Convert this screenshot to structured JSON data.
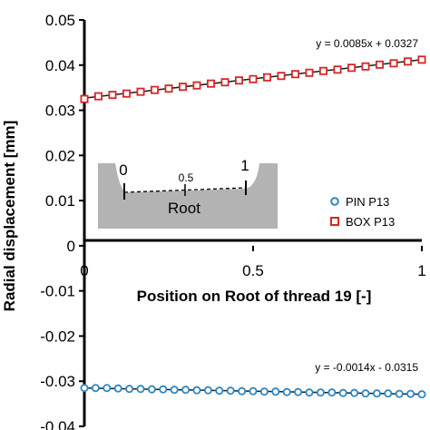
{
  "chart_data": {
    "type": "scatter",
    "xlabel": "Position on Root of thread 19 [-]",
    "ylabel": "Radial displacement [mm]",
    "xlim": [
      0,
      1
    ],
    "ylim": [
      -0.04,
      0.05
    ],
    "x_ticks": [
      "0",
      "0.5",
      "1"
    ],
    "y_ticks": [
      "0.05",
      "0.04",
      "0.03",
      "0.02",
      "0.01",
      "0",
      "-0.01",
      "-0.02",
      "-0.03",
      "-0.04"
    ],
    "grid": false,
    "legend_position": "right",
    "series": [
      {
        "name": "PIN P13",
        "marker": "circle",
        "color": "#2e86c1",
        "x": [
          0,
          0.0333,
          0.0667,
          0.1,
          0.1333,
          0.1667,
          0.2,
          0.2333,
          0.2667,
          0.3,
          0.3333,
          0.3667,
          0.4,
          0.4333,
          0.4667,
          0.5,
          0.5333,
          0.5667,
          0.6,
          0.6333,
          0.6667,
          0.7,
          0.7333,
          0.7667,
          0.8,
          0.8333,
          0.8667,
          0.9,
          0.9333,
          0.9667,
          1
        ],
        "y": [
          -0.0315,
          -0.0315,
          -0.0315,
          -0.0316,
          -0.0317,
          -0.0317,
          -0.0318,
          -0.0318,
          -0.0319,
          -0.0319,
          -0.032,
          -0.032,
          -0.0321,
          -0.0321,
          -0.0322,
          -0.0322,
          -0.0323,
          -0.0323,
          -0.0324,
          -0.0324,
          -0.0325,
          -0.0325,
          -0.0325,
          -0.0326,
          -0.0326,
          -0.0327,
          -0.0327,
          -0.0327,
          -0.0328,
          -0.0328,
          -0.0329
        ],
        "trendline": "y = -0.0014x - 0.0315"
      },
      {
        "name": "BOX P13",
        "marker": "square",
        "color": "#d62728",
        "x": [
          0,
          0.0417,
          0.0833,
          0.125,
          0.1667,
          0.2083,
          0.25,
          0.2917,
          0.3333,
          0.375,
          0.4167,
          0.4583,
          0.5,
          0.5417,
          0.5833,
          0.625,
          0.6667,
          0.7083,
          0.75,
          0.7917,
          0.8333,
          0.875,
          0.9167,
          0.9583,
          1
        ],
        "y": [
          0.0325,
          0.0331,
          0.0334,
          0.0337,
          0.0341,
          0.0345,
          0.0348,
          0.0352,
          0.0355,
          0.0359,
          0.0362,
          0.0366,
          0.0369,
          0.0373,
          0.0376,
          0.038,
          0.0383,
          0.0387,
          0.039,
          0.0394,
          0.0397,
          0.0401,
          0.0404,
          0.0408,
          0.0412
        ],
        "trendline": "y = 0.0085x + 0.0327"
      }
    ],
    "inset": {
      "label_start": "0",
      "label_mid": "0.5",
      "label_end": "1",
      "label_root": "Root"
    }
  }
}
